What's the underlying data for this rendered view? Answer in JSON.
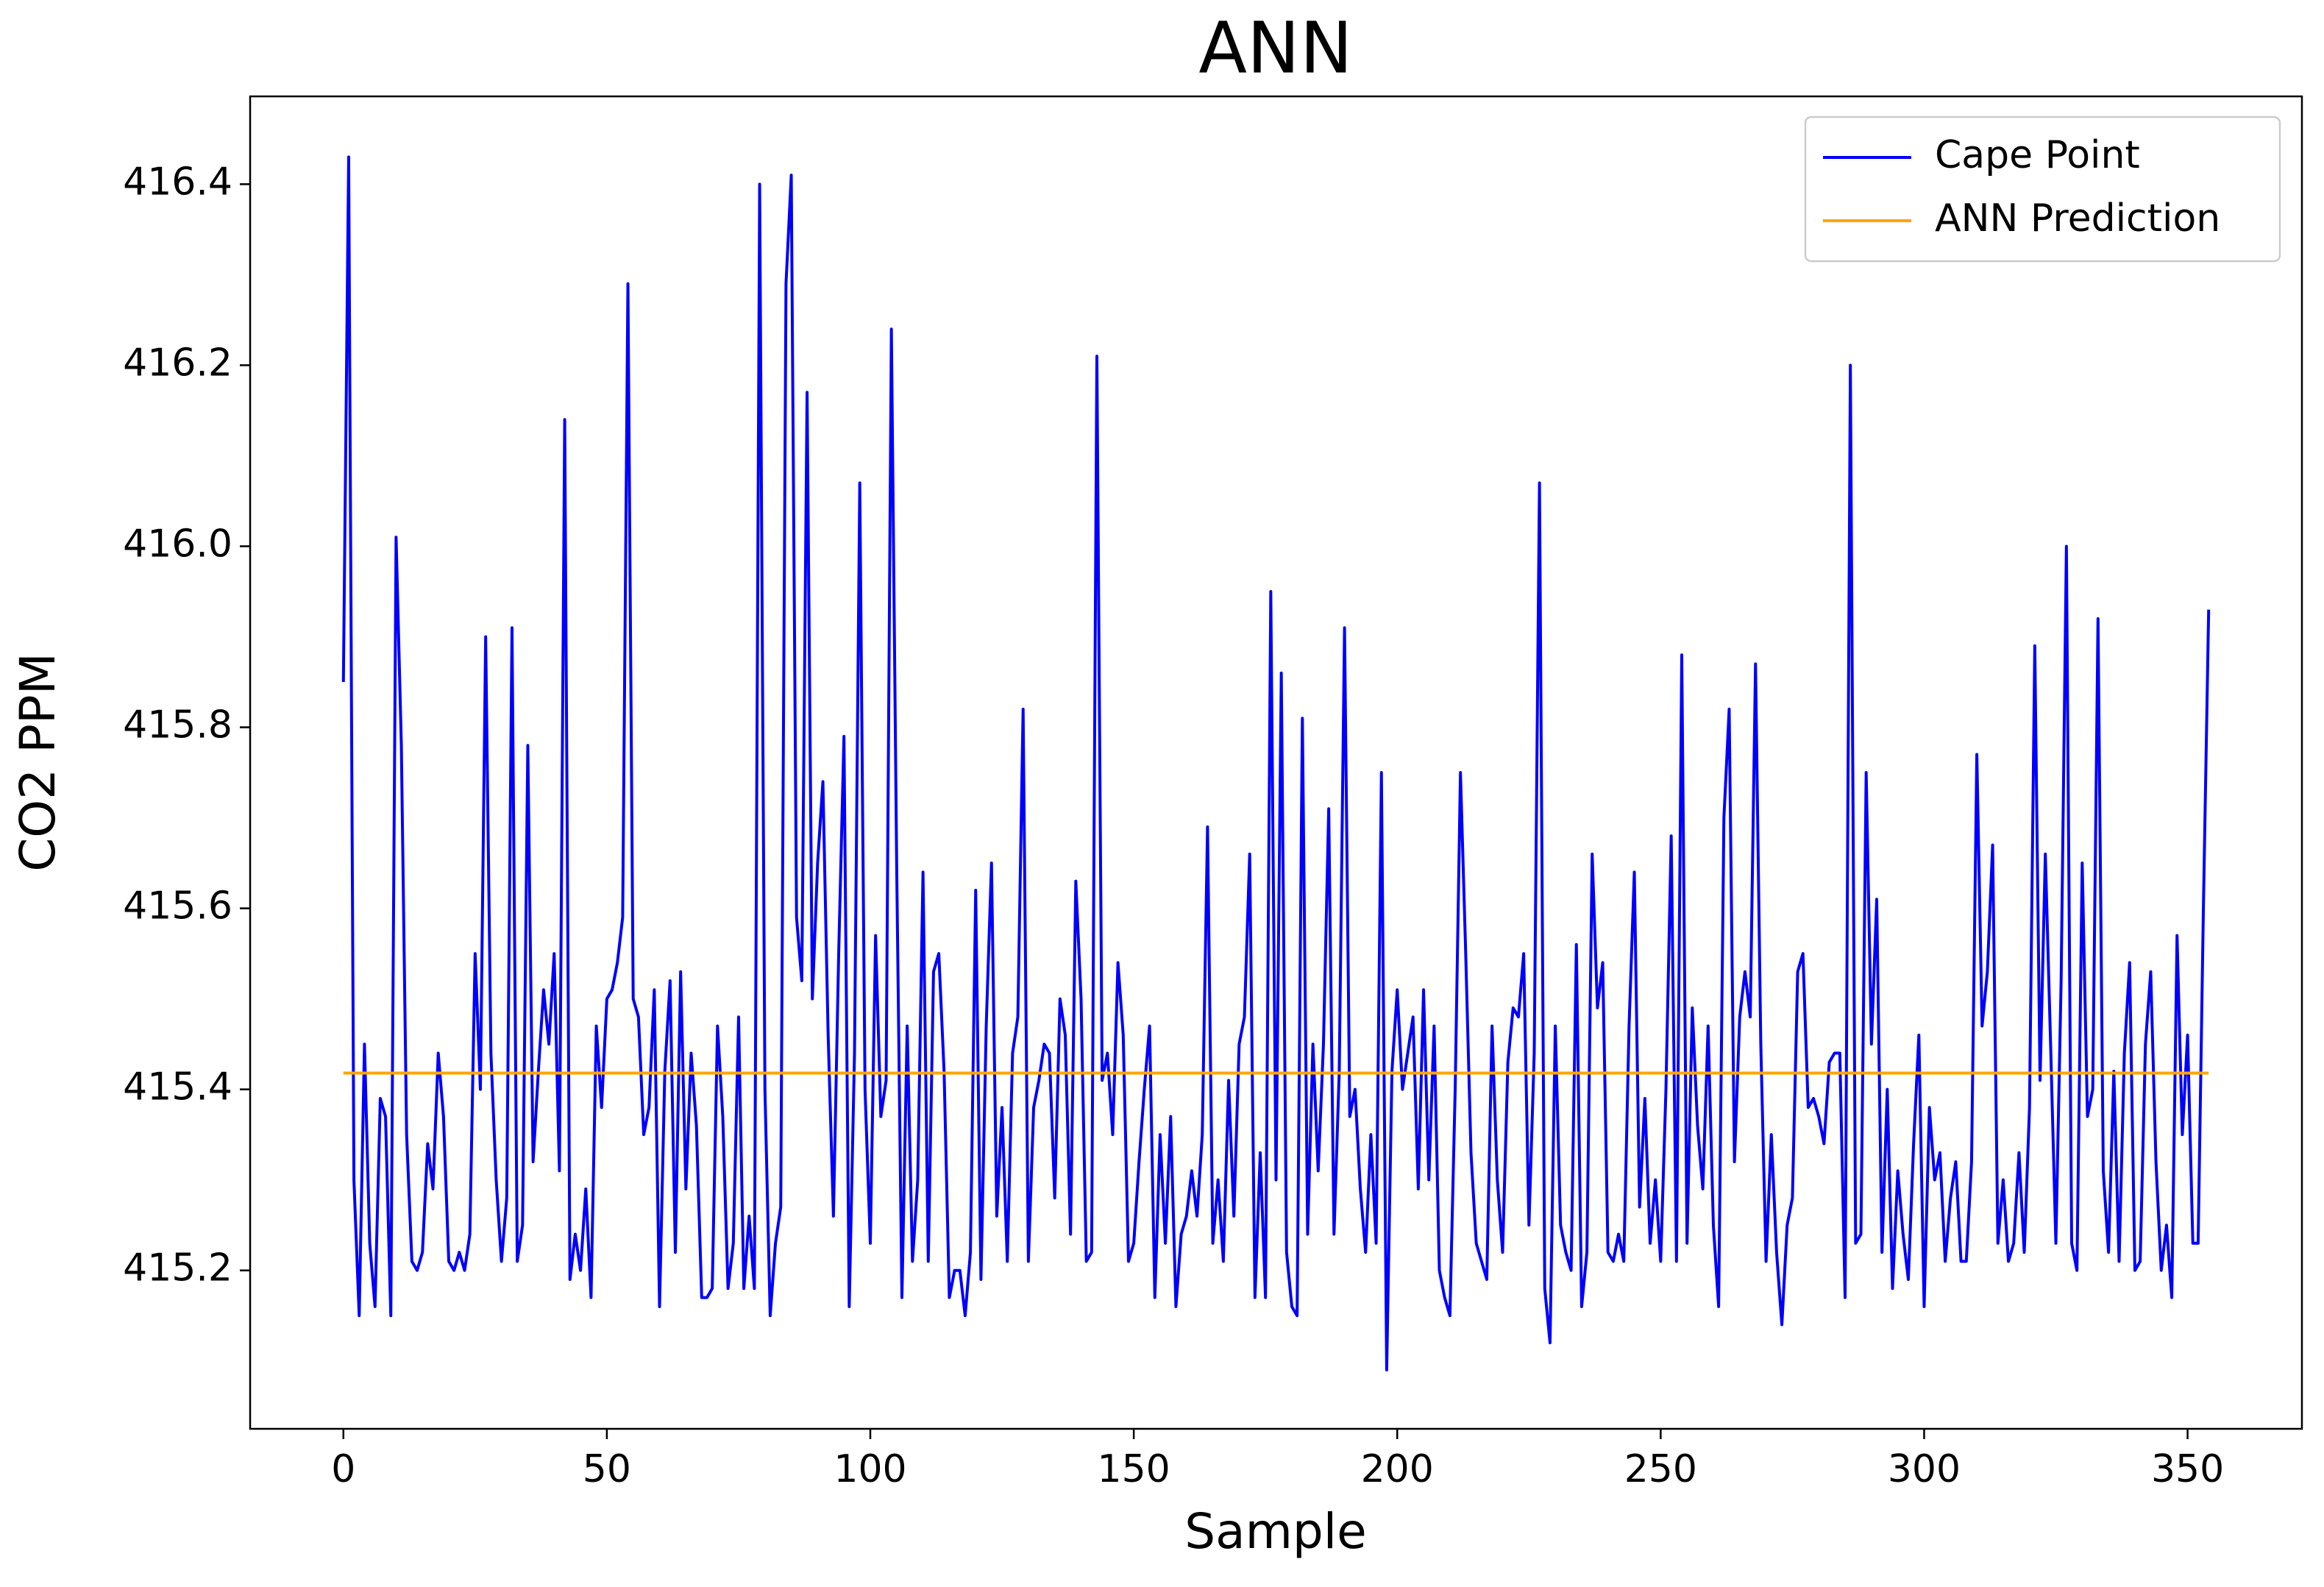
{
  "chart_data": {
    "type": "line",
    "title": "ANN",
    "xlabel": "Sample",
    "ylabel": "CO2 PPM",
    "x": [
      0,
      1,
      2,
      3,
      4,
      5,
      6,
      7,
      8,
      9,
      10,
      11,
      12,
      13,
      14,
      15,
      16,
      17,
      18,
      19,
      20,
      21,
      22,
      23,
      24,
      25,
      26,
      27,
      28,
      29,
      30,
      31,
      32,
      33,
      34,
      35,
      36,
      37,
      38,
      39,
      40,
      41,
      42,
      43,
      44,
      45,
      46,
      47,
      48,
      49,
      50,
      51,
      52,
      53,
      54,
      55,
      56,
      57,
      58,
      59,
      60,
      61,
      62,
      63,
      64,
      65,
      66,
      67,
      68,
      69,
      70,
      71,
      72,
      73,
      74,
      75,
      76,
      77,
      78,
      79,
      80,
      81,
      82,
      83,
      84,
      85,
      86,
      87,
      88,
      89,
      90,
      91,
      92,
      93,
      94,
      95,
      96,
      97,
      98,
      99,
      100,
      101,
      102,
      103,
      104,
      105,
      106,
      107,
      108,
      109,
      110,
      111,
      112,
      113,
      114,
      115,
      116,
      117,
      118,
      119,
      120,
      121,
      122,
      123,
      124,
      125,
      126,
      127,
      128,
      129,
      130,
      131,
      132,
      133,
      134,
      135,
      136,
      137,
      138,
      139,
      140,
      141,
      142,
      143,
      144,
      145,
      146,
      147,
      148,
      149,
      150,
      151,
      152,
      153,
      154,
      155,
      156,
      157,
      158,
      159,
      160,
      161,
      162,
      163,
      164,
      165,
      166,
      167,
      168,
      169,
      170,
      171,
      172,
      173,
      174,
      175,
      176,
      177,
      178,
      179,
      180,
      181,
      182,
      183,
      184,
      185,
      186,
      187,
      188,
      189,
      190,
      191,
      192,
      193,
      194,
      195,
      196,
      197,
      198,
      199,
      200,
      201,
      202,
      203,
      204,
      205,
      206,
      207,
      208,
      209,
      210,
      211,
      212,
      213,
      214,
      215,
      216,
      217,
      218,
      219,
      220,
      221,
      222,
      223,
      224,
      225,
      226,
      227,
      228,
      229,
      230,
      231,
      232,
      233,
      234,
      235,
      236,
      237,
      238,
      239,
      240,
      241,
      242,
      243,
      244,
      245,
      246,
      247,
      248,
      249,
      250,
      251,
      252,
      253,
      254,
      255,
      256,
      257,
      258,
      259,
      260,
      261,
      262,
      263,
      264,
      265,
      266,
      267,
      268,
      269,
      270,
      271,
      272,
      273,
      274,
      275,
      276,
      277,
      278,
      279,
      280,
      281,
      282,
      283,
      284,
      285,
      286,
      287,
      288,
      289,
      290,
      291,
      292,
      293,
      294,
      295,
      296,
      297,
      298,
      299,
      300,
      301,
      302,
      303,
      304,
      305,
      306,
      307,
      308,
      309,
      310,
      311,
      312,
      313,
      314,
      315,
      316,
      317,
      318,
      319,
      320,
      321,
      322,
      323,
      324,
      325,
      326,
      327,
      328,
      329,
      330,
      331,
      332,
      333,
      334,
      335,
      336,
      337,
      338,
      339,
      340,
      341,
      342,
      343,
      344,
      345,
      346,
      347,
      348,
      349,
      350,
      351,
      352,
      353,
      354
    ],
    "series": [
      {
        "name": "Cape Point",
        "color": "#0000ff",
        "values": [
          415.85,
          416.43,
          415.3,
          415.15,
          415.45,
          415.23,
          415.16,
          415.39,
          415.37,
          415.15,
          416.01,
          415.78,
          415.35,
          415.21,
          415.2,
          415.22,
          415.34,
          415.29,
          415.44,
          415.37,
          415.21,
          415.2,
          415.22,
          415.2,
          415.24,
          415.55,
          415.4,
          415.9,
          415.44,
          415.3,
          415.21,
          415.28,
          415.91,
          415.21,
          415.25,
          415.78,
          415.32,
          415.42,
          415.51,
          415.45,
          415.55,
          415.31,
          416.14,
          415.19,
          415.24,
          415.2,
          415.29,
          415.17,
          415.47,
          415.38,
          415.5,
          415.51,
          415.54,
          415.59,
          416.29,
          415.5,
          415.48,
          415.35,
          415.38,
          415.51,
          415.16,
          415.42,
          415.52,
          415.22,
          415.53,
          415.29,
          415.44,
          415.36,
          415.17,
          415.17,
          415.18,
          415.47,
          415.37,
          415.18,
          415.23,
          415.48,
          415.18,
          415.26,
          415.18,
          416.4,
          415.4,
          415.15,
          415.23,
          415.27,
          416.29,
          416.41,
          415.59,
          415.52,
          416.17,
          415.5,
          415.65,
          415.74,
          415.46,
          415.26,
          415.55,
          415.79,
          415.16,
          415.44,
          416.07,
          415.4,
          415.23,
          415.57,
          415.37,
          415.41,
          416.24,
          415.65,
          415.17,
          415.47,
          415.21,
          415.3,
          415.64,
          415.21,
          415.53,
          415.55,
          415.42,
          415.17,
          415.2,
          415.2,
          415.15,
          415.22,
          415.62,
          415.19,
          415.47,
          415.65,
          415.26,
          415.38,
          415.21,
          415.44,
          415.48,
          415.82,
          415.21,
          415.38,
          415.41,
          415.45,
          415.44,
          415.28,
          415.5,
          415.46,
          415.24,
          415.63,
          415.5,
          415.21,
          415.22,
          416.21,
          415.41,
          415.44,
          415.35,
          415.54,
          415.46,
          415.21,
          415.23,
          415.32,
          415.4,
          415.47,
          415.17,
          415.35,
          415.23,
          415.37,
          415.16,
          415.24,
          415.26,
          415.31,
          415.26,
          415.35,
          415.69,
          415.23,
          415.3,
          415.21,
          415.41,
          415.26,
          415.45,
          415.48,
          415.66,
          415.17,
          415.33,
          415.17,
          415.95,
          415.3,
          415.86,
          415.22,
          415.16,
          415.15,
          415.81,
          415.24,
          415.45,
          415.31,
          415.45,
          415.71,
          415.24,
          415.42,
          415.91,
          415.37,
          415.4,
          415.29,
          415.22,
          415.35,
          415.23,
          415.75,
          415.09,
          415.42,
          415.51,
          415.4,
          415.44,
          415.48,
          415.29,
          415.51,
          415.3,
          415.47,
          415.2,
          415.17,
          415.15,
          415.4,
          415.75,
          415.55,
          415.33,
          415.23,
          415.21,
          415.19,
          415.47,
          415.3,
          415.22,
          415.43,
          415.49,
          415.48,
          415.55,
          415.25,
          415.44,
          416.07,
          415.18,
          415.12,
          415.47,
          415.25,
          415.22,
          415.2,
          415.56,
          415.16,
          415.22,
          415.66,
          415.49,
          415.54,
          415.22,
          415.21,
          415.24,
          415.21,
          415.47,
          415.64,
          415.27,
          415.39,
          415.23,
          415.3,
          415.21,
          415.4,
          415.68,
          415.21,
          415.88,
          415.23,
          415.49,
          415.36,
          415.29,
          415.47,
          415.25,
          415.16,
          415.7,
          415.82,
          415.32,
          415.48,
          415.53,
          415.48,
          415.87,
          415.45,
          415.21,
          415.35,
          415.22,
          415.14,
          415.25,
          415.28,
          415.53,
          415.55,
          415.38,
          415.39,
          415.37,
          415.34,
          415.43,
          415.44,
          415.44,
          415.17,
          416.2,
          415.23,
          415.24,
          415.75,
          415.45,
          415.61,
          415.22,
          415.4,
          415.18,
          415.31,
          415.24,
          415.19,
          415.34,
          415.46,
          415.16,
          415.38,
          415.3,
          415.33,
          415.21,
          415.28,
          415.32,
          415.21,
          415.21,
          415.32,
          415.77,
          415.47,
          415.53,
          415.67,
          415.23,
          415.3,
          415.21,
          415.23,
          415.33,
          415.22,
          415.38,
          415.89,
          415.41,
          415.66,
          415.45,
          415.23,
          415.52,
          416.0,
          415.23,
          415.2,
          415.65,
          415.37,
          415.4,
          415.92,
          415.31,
          415.22,
          415.42,
          415.21,
          415.44,
          415.54,
          415.2,
          415.21,
          415.45,
          415.53,
          415.32,
          415.2,
          415.25,
          415.17,
          415.57,
          415.35,
          415.46,
          415.23,
          415.23,
          415.6,
          415.93
        ]
      },
      {
        "name": "ANN Prediction",
        "color": "#ffa500",
        "x": [
          0,
          354
        ],
        "values": [
          415.418,
          415.418
        ]
      }
    ],
    "xlim": [
      -17.7,
      371.7
    ],
    "xticks": [
      0,
      50,
      100,
      150,
      200,
      250,
      300,
      350
    ],
    "ylim": [
      415.025,
      416.497
    ],
    "yticks": [
      415.2,
      415.4,
      415.6,
      415.8,
      {
        "value": 416.0,
        "label": "416.0"
      },
      416.2,
      416.4
    ],
    "grid": false,
    "legend": "upper right"
  }
}
